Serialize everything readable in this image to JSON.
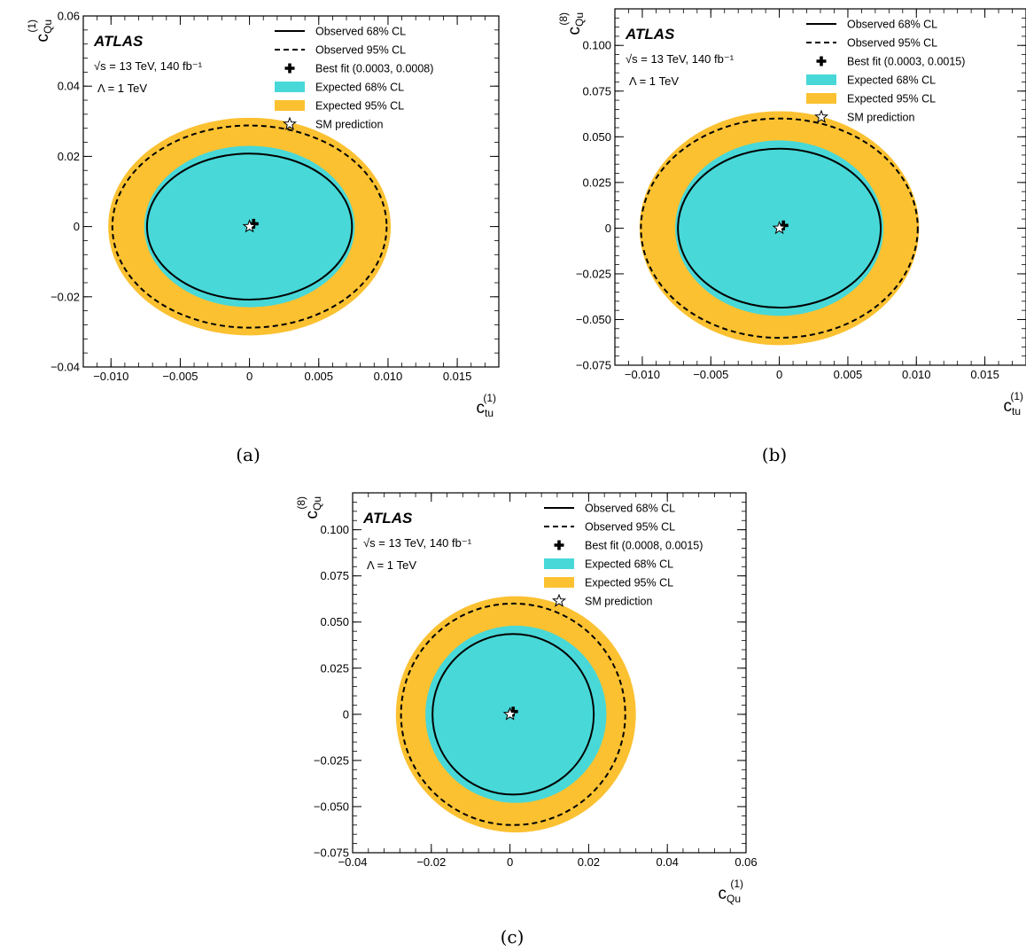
{
  "colors": {
    "exp68": "#48d8d8",
    "exp95": "#fbc131",
    "line": "#000000"
  },
  "chart_data": [
    {
      "panel_label": "(a)",
      "type": "contour",
      "atlas_label": "ATLAS",
      "energy_label": "√s = 13 TeV, 140 fb⁻¹",
      "lambda_label": "Λ = 1 TeV",
      "xlabel": {
        "base": "c",
        "sub": "tu",
        "sup": "(1)"
      },
      "ylabel": {
        "base": "c",
        "sub": "Qu",
        "sup": "(1)"
      },
      "xlim": [
        -0.012,
        0.018
      ],
      "ylim": [
        -0.04,
        0.06
      ],
      "xticks": [
        -0.01,
        -0.005,
        0,
        0.005,
        0.01,
        0.015
      ],
      "xtick_labels": [
        "−0.010",
        "−0.005",
        "0",
        "0.005",
        "0.010",
        "0.015"
      ],
      "yticks": [
        -0.04,
        -0.02,
        0,
        0.02,
        0.04,
        0.06
      ],
      "ytick_labels": [
        "−0.04",
        "−0.02",
        "0",
        "0.02",
        "0.04",
        "0.06"
      ],
      "legend": [
        "Observed 68% CL",
        "Observed 95% CL",
        "Best fit (0.0003, 0.0008)",
        "Expected 68% CL",
        "Expected 95% CL",
        "SM prediction"
      ],
      "legend_position": "top-right",
      "contours": {
        "expected_95": {
          "cx": 0,
          "cy": 0,
          "rx": 0.0102,
          "ry": 0.031
        },
        "expected_68": {
          "cx": 0,
          "cy": 0,
          "rx": 0.0076,
          "ry": 0.023
        },
        "observed_95": {
          "cx": 0,
          "cy": 0,
          "rx": 0.0099,
          "ry": 0.0288
        },
        "observed_68": {
          "cx": 0,
          "cy": 0,
          "rx": 0.0074,
          "ry": 0.0208
        }
      },
      "best_fit": [
        0.0003,
        0.0008
      ],
      "sm_prediction": [
        0,
        0
      ]
    },
    {
      "panel_label": "(b)",
      "type": "contour",
      "atlas_label": "ATLAS",
      "energy_label": "√s = 13 TeV, 140 fb⁻¹",
      "lambda_label": "Λ = 1 TeV",
      "xlabel": {
        "base": "c",
        "sub": "tu",
        "sup": "(1)"
      },
      "ylabel": {
        "base": "c",
        "sub": "Qu",
        "sup": "(8)"
      },
      "xlim": [
        -0.012,
        0.018
      ],
      "ylim": [
        -0.075,
        0.12
      ],
      "xticks": [
        -0.01,
        -0.005,
        0,
        0.005,
        0.01,
        0.015
      ],
      "xtick_labels": [
        "−0.010",
        "−0.005",
        "0",
        "0.005",
        "0.010",
        "0.015"
      ],
      "yticks": [
        -0.075,
        -0.05,
        -0.025,
        0,
        0.025,
        0.05,
        0.075,
        0.1
      ],
      "ytick_labels": [
        "−0.075",
        "−0.050",
        "−0.025",
        "0",
        "0.025",
        "0.050",
        "0.075",
        "0.100"
      ],
      "legend": [
        "Observed 68% CL",
        "Observed 95% CL",
        "Best fit (0.0003, 0.0015)",
        "Expected 68% CL",
        "Expected 95% CL",
        "SM prediction"
      ],
      "legend_position": "top-right",
      "contours": {
        "expected_95": {
          "cx": 0,
          "cy": 0,
          "rx": 0.0102,
          "ry": 0.064
        },
        "expected_68": {
          "cx": 0,
          "cy": 0,
          "rx": 0.0076,
          "ry": 0.048
        },
        "observed_95": {
          "cx": 0,
          "cy": 0,
          "rx": 0.0101,
          "ry": 0.06
        },
        "observed_68": {
          "cx": 0,
          "cy": 0,
          "rx": 0.0074,
          "ry": 0.0435
        }
      },
      "best_fit": [
        0.0003,
        0.0015
      ],
      "sm_prediction": [
        0,
        0
      ]
    },
    {
      "panel_label": "(c)",
      "type": "contour",
      "atlas_label": "ATLAS",
      "energy_label": "√s = 13 TeV, 140 fb⁻¹",
      "lambda_label": "Λ = 1 TeV",
      "xlabel": {
        "base": "c",
        "sub": "Qu",
        "sup": "(1)"
      },
      "ylabel": {
        "base": "c",
        "sub": "Qu",
        "sup": "(8)"
      },
      "xlim": [
        -0.04,
        0.06
      ],
      "ylim": [
        -0.075,
        0.12
      ],
      "xticks": [
        -0.04,
        -0.02,
        0,
        0.02,
        0.04,
        0.06
      ],
      "xtick_labels": [
        "−0.04",
        "−0.02",
        "0",
        "0.02",
        "0.04",
        "0.06"
      ],
      "yticks": [
        -0.075,
        -0.05,
        -0.025,
        0,
        0.025,
        0.05,
        0.075,
        0.1
      ],
      "ytick_labels": [
        "−0.075",
        "−0.050",
        "−0.025",
        "0",
        "0.025",
        "0.050",
        "0.075",
        "0.100"
      ],
      "legend": [
        "Observed 68% CL",
        "Observed 95% CL",
        "Best fit (0.0008, 0.0015)",
        "Expected 68% CL",
        "Expected 95% CL",
        "SM prediction"
      ],
      "legend_position": "top-right",
      "contours": {
        "expected_95": {
          "cx": 0.0015,
          "cy": 0,
          "rx": 0.0305,
          "ry": 0.064
        },
        "expected_68": {
          "cx": 0.0015,
          "cy": 0,
          "rx": 0.023,
          "ry": 0.048
        },
        "observed_95": {
          "cx": 0.0008,
          "cy": 0,
          "rx": 0.0285,
          "ry": 0.06
        },
        "observed_68": {
          "cx": 0.0008,
          "cy": 0,
          "rx": 0.0205,
          "ry": 0.0435
        }
      },
      "best_fit": [
        0.0008,
        0.0015
      ],
      "sm_prediction": [
        0,
        0
      ]
    }
  ]
}
